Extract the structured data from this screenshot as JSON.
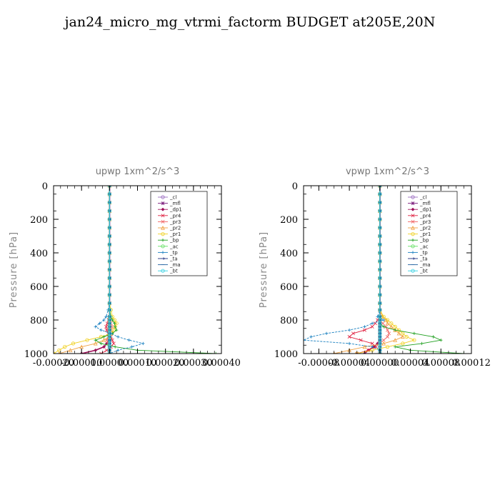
{
  "title": "jan24_micro_mg_vtrmi_factorm  BUDGET at205E,20N",
  "chart_data": [
    {
      "type": "line",
      "title": "upwp   1xm^2/s^3",
      "ylabel": "Pressure [hPa]",
      "xlim": [
        -0.0002,
        0.0004
      ],
      "ylim": [
        1000,
        0
      ],
      "xticks": [
        "-0.00020",
        "-0.00010",
        "0.00000",
        "0.00010",
        "0.00020",
        "0.00030",
        "0.00040"
      ],
      "xtick_values": [
        -0.0002,
        -0.0001,
        0,
        0.0001,
        0.0002,
        0.0003,
        0.0004
      ],
      "yticks": [
        "0",
        "200",
        "400",
        "600",
        "800",
        "1000"
      ],
      "ytick_values": [
        0,
        200,
        400,
        600,
        800,
        1000
      ],
      "pressure": [
        0,
        50,
        100,
        150,
        200,
        250,
        300,
        350,
        400,
        450,
        500,
        550,
        600,
        650,
        700,
        740,
        780,
        800,
        820,
        840,
        860,
        880,
        900,
        920,
        940,
        960,
        980,
        1000
      ],
      "series": [
        {
          "name": "_cl",
          "color": "#9a6cc0",
          "values": [
            0,
            0,
            0,
            0,
            0,
            0,
            0,
            0,
            0,
            0,
            0,
            0,
            0,
            0,
            0,
            0,
            0,
            0,
            0,
            0,
            0,
            0,
            0,
            0,
            0,
            0,
            0,
            0
          ]
        },
        {
          "name": "_mfl",
          "color": "#7a1a7a",
          "values": [
            0,
            0,
            0,
            0,
            0,
            0,
            0,
            0,
            0,
            0,
            0,
            0,
            0,
            0,
            0,
            0,
            0,
            0,
            0,
            0,
            0,
            0,
            0,
            0,
            0,
            0,
            0,
            0
          ]
        },
        {
          "name": "_dp1",
          "color": "#a0105a",
          "values": [
            0,
            0,
            0,
            0,
            0,
            0,
            0,
            0,
            0,
            0,
            0,
            0,
            0,
            0,
            0,
            0,
            0,
            0,
            0,
            0,
            0,
            0,
            0,
            0,
            -1e-05,
            -2e-05,
            -5e-05,
            -0.0001
          ]
        },
        {
          "name": "_pr4",
          "color": "#e02040",
          "values": [
            0,
            0,
            0,
            0,
            0,
            0,
            0,
            0,
            0,
            0,
            0,
            0,
            0,
            0,
            0,
            0,
            0,
            -3e-06,
            -8e-06,
            -1.2e-05,
            -1e-05,
            -5e-06,
            5e-06,
            1e-05,
            1.5e-05,
            5e-06,
            -1e-05,
            -3e-05
          ]
        },
        {
          "name": "_pr3",
          "color": "#f06060",
          "values": [
            0,
            0,
            0,
            0,
            0,
            0,
            0,
            0,
            0,
            0,
            0,
            0,
            0,
            0,
            0,
            0,
            0,
            2e-06,
            5e-06,
            8e-06,
            5e-06,
            2e-06,
            -5e-06,
            -1e-05,
            -5e-06,
            0,
            0,
            0
          ]
        },
        {
          "name": "_pr2",
          "color": "#f0a040",
          "values": [
            0,
            0,
            0,
            0,
            0,
            0,
            0,
            0,
            0,
            0,
            0,
            0,
            0,
            0,
            0,
            0,
            0,
            0,
            0,
            0,
            0,
            0,
            0,
            -2e-05,
            -5e-05,
            -0.0001,
            -0.00014,
            -0.00018
          ]
        },
        {
          "name": "_pr1",
          "color": "#f0d020",
          "values": [
            0,
            0,
            0,
            0,
            0,
            0,
            0,
            0,
            0,
            0,
            0,
            0,
            0,
            0,
            0,
            5e-06,
            1e-05,
            1.8e-05,
            2.5e-05,
            2e-05,
            1.5e-05,
            8e-06,
            -3e-05,
            -8e-05,
            -0.00013,
            -0.00016,
            -0.00018,
            -0.0002
          ]
        },
        {
          "name": "_bp",
          "color": "#20a020",
          "values": [
            0,
            0,
            0,
            0,
            0,
            0,
            0,
            0,
            0,
            0,
            0,
            0,
            0,
            0,
            0,
            0,
            5e-06,
            1e-05,
            1.8e-05,
            2e-05,
            2.5e-05,
            1e-05,
            -2e-05,
            -5e-05,
            -3e-05,
            2e-05,
            0.0001,
            0.00038
          ]
        },
        {
          "name": "_ac",
          "color": "#60e060",
          "values": [
            0,
            0,
            0,
            0,
            0,
            0,
            0,
            0,
            0,
            0,
            0,
            0,
            0,
            0,
            0,
            0,
            0,
            0,
            0,
            0,
            0,
            0,
            0,
            0,
            0,
            0,
            0,
            0
          ]
        },
        {
          "name": "_tp",
          "color": "#1a80c0",
          "values": [
            0,
            0,
            0,
            0,
            0,
            0,
            0,
            0,
            0,
            0,
            0,
            0,
            0,
            0,
            0,
            -5e-06,
            -1.2e-05,
            -2e-05,
            -3.5e-05,
            -5e-05,
            -3e-05,
            5e-06,
            3e-05,
            7e-05,
            0.00012,
            8e-05,
            3e-05,
            0
          ]
        },
        {
          "name": "_ta",
          "color": "#203080",
          "values": [
            0,
            0,
            0,
            0,
            0,
            0,
            0,
            0,
            0,
            0,
            0,
            0,
            0,
            0,
            0,
            0,
            0,
            0,
            0,
            0,
            0,
            0,
            0,
            0,
            0,
            0,
            0,
            0
          ]
        },
        {
          "name": "_ma",
          "color": "#2060a0",
          "values": [
            0,
            0,
            0,
            0,
            0,
            0,
            0,
            0,
            0,
            0,
            0,
            0,
            0,
            0,
            0,
            0,
            0,
            0,
            0,
            0,
            0,
            0,
            0,
            0,
            0,
            0,
            0,
            0
          ]
        },
        {
          "name": "_bt",
          "color": "#30d0e0",
          "values": [
            0,
            0,
            0,
            0,
            0,
            0,
            0,
            0,
            0,
            0,
            0,
            0,
            0,
            0,
            0,
            0,
            0,
            0,
            0,
            0,
            0,
            0,
            0,
            0,
            0,
            0,
            0,
            0
          ]
        }
      ]
    },
    {
      "type": "line",
      "title": "vpwp   1xm^2/s^3",
      "ylabel": "Pressure [hPa]",
      "xlim": [
        -0.0001,
        0.00012
      ],
      "ylim": [
        1000,
        0
      ],
      "xticks": [
        "-0.00008",
        "-0.00004",
        "0.00000",
        "0.00004",
        "0.00008",
        "0.00012"
      ],
      "xtick_values": [
        -8e-05,
        -4e-05,
        0,
        4e-05,
        8e-05,
        0.00012
      ],
      "yticks": [
        "0",
        "200",
        "400",
        "600",
        "800",
        "1000"
      ],
      "ytick_values": [
        0,
        200,
        400,
        600,
        800,
        1000
      ],
      "pressure": [
        0,
        50,
        100,
        150,
        200,
        250,
        300,
        350,
        400,
        450,
        500,
        550,
        600,
        650,
        700,
        740,
        780,
        800,
        820,
        840,
        860,
        880,
        900,
        920,
        940,
        960,
        980,
        1000
      ],
      "series": [
        {
          "name": "_cl",
          "color": "#9a6cc0",
          "values": [
            0,
            0,
            0,
            0,
            0,
            0,
            0,
            0,
            0,
            0,
            0,
            0,
            0,
            0,
            0,
            0,
            0,
            0,
            0,
            0,
            0,
            0,
            0,
            0,
            0,
            0,
            0,
            0
          ]
        },
        {
          "name": "_mfl",
          "color": "#7a1a7a",
          "values": [
            0,
            0,
            0,
            0,
            0,
            0,
            0,
            0,
            0,
            0,
            0,
            0,
            0,
            0,
            0,
            0,
            0,
            0,
            0,
            0,
            0,
            0,
            0,
            0,
            0,
            0,
            0,
            0
          ]
        },
        {
          "name": "_dp1",
          "color": "#a0105a",
          "values": [
            0,
            0,
            0,
            0,
            0,
            0,
            0,
            0,
            0,
            0,
            0,
            0,
            0,
            0,
            0,
            0,
            0,
            0,
            0,
            0,
            0,
            0,
            0,
            0,
            -3e-06,
            -8e-06,
            -1.5e-05,
            -2e-05
          ]
        },
        {
          "name": "_pr4",
          "color": "#e02040",
          "values": [
            0,
            0,
            0,
            0,
            0,
            0,
            0,
            0,
            0,
            0,
            0,
            0,
            0,
            0,
            0,
            0,
            0,
            -3e-06,
            -6e-06,
            -1e-05,
            -2e-05,
            -3.5e-05,
            -4e-05,
            -2.5e-05,
            -1e-05,
            -5e-06,
            -1.5e-05,
            -3e-05
          ]
        },
        {
          "name": "_pr3",
          "color": "#f06060",
          "values": [
            0,
            0,
            0,
            0,
            0,
            0,
            0,
            0,
            0,
            0,
            0,
            0,
            0,
            0,
            0,
            0,
            0,
            0,
            4e-06,
            8e-06,
            1e-05,
            1.2e-05,
            1e-05,
            5e-06,
            0,
            0,
            0,
            0
          ]
        },
        {
          "name": "_pr2",
          "color": "#f0a040",
          "values": [
            0,
            0,
            0,
            0,
            0,
            0,
            0,
            0,
            0,
            0,
            0,
            0,
            0,
            0,
            0,
            0,
            3e-06,
            8e-06,
            1e-05,
            1.5e-05,
            2e-05,
            2.5e-05,
            3e-05,
            2e-05,
            5e-06,
            -2e-05,
            -4e-05,
            -6e-05
          ]
        },
        {
          "name": "_pr1",
          "color": "#f0d020",
          "values": [
            0,
            0,
            0,
            0,
            0,
            0,
            0,
            0,
            0,
            0,
            0,
            0,
            0,
            0,
            0,
            0,
            5e-06,
            1e-05,
            1.5e-05,
            2e-05,
            2.5e-05,
            3e-05,
            3.5e-05,
            4.5e-05,
            3e-05,
            1e-05,
            -1e-05,
            -3e-05
          ]
        },
        {
          "name": "_bp",
          "color": "#20a020",
          "values": [
            0,
            0,
            0,
            0,
            0,
            0,
            0,
            0,
            0,
            0,
            0,
            0,
            0,
            0,
            0,
            0,
            0,
            0,
            0,
            5e-06,
            2e-05,
            4.5e-05,
            7e-05,
            8e-05,
            5.5e-05,
            2e-05,
            4e-05,
            0.00011
          ]
        },
        {
          "name": "_ac",
          "color": "#60e060",
          "values": [
            0,
            0,
            0,
            0,
            0,
            0,
            0,
            0,
            0,
            0,
            0,
            0,
            0,
            0,
            0,
            0,
            0,
            0,
            0,
            0,
            0,
            0,
            0,
            0,
            0,
            0,
            0,
            0
          ]
        },
        {
          "name": "_tp",
          "color": "#1a80c0",
          "values": [
            0,
            0,
            0,
            0,
            0,
            0,
            0,
            0,
            0,
            0,
            0,
            0,
            0,
            0,
            0,
            0,
            -3e-06,
            5e-06,
            -1e-05,
            -2e-05,
            -4e-05,
            -7e-05,
            -9e-05,
            -0.0001,
            -4e-05,
            -1e-05,
            0,
            0
          ]
        },
        {
          "name": "_ta",
          "color": "#203080",
          "values": [
            0,
            0,
            0,
            0,
            0,
            0,
            0,
            0,
            0,
            0,
            0,
            0,
            0,
            0,
            0,
            0,
            0,
            0,
            0,
            0,
            0,
            0,
            0,
            0,
            0,
            0,
            0,
            0
          ]
        },
        {
          "name": "_ma",
          "color": "#2060a0",
          "values": [
            0,
            0,
            0,
            0,
            0,
            0,
            0,
            0,
            0,
            0,
            0,
            0,
            0,
            0,
            0,
            0,
            0,
            0,
            0,
            0,
            0,
            0,
            0,
            0,
            0,
            0,
            0,
            0
          ]
        },
        {
          "name": "_bt",
          "color": "#30d0e0",
          "values": [
            0,
            0,
            0,
            0,
            0,
            0,
            0,
            0,
            0,
            0,
            0,
            0,
            0,
            0,
            0,
            0,
            0,
            0,
            0,
            0,
            0,
            0,
            0,
            0,
            0,
            0,
            0,
            0
          ]
        }
      ]
    }
  ]
}
